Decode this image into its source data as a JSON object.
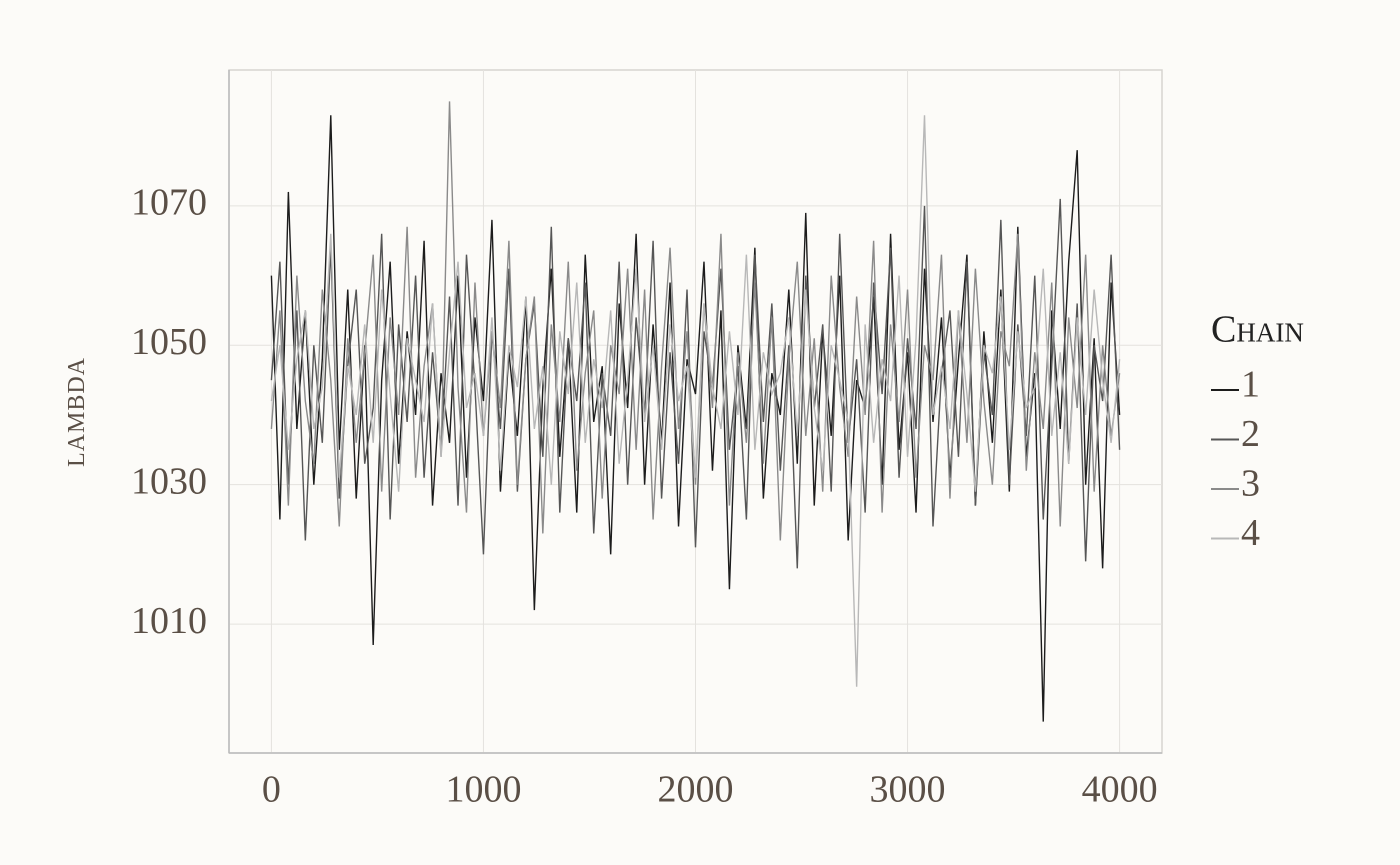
{
  "chart_data": {
    "type": "line",
    "y_label": "lambda",
    "legend_title": "Chain",
    "legend_position": "right",
    "grid": true,
    "xlim": [
      -200,
      4200
    ],
    "ylim": [
      991.5,
      1089.5
    ],
    "xticks": [
      0,
      1000,
      2000,
      3000,
      4000
    ],
    "yticks": [
      1010,
      1030,
      1050,
      1070
    ],
    "x": [
      0,
      40,
      80,
      120,
      160,
      200,
      240,
      280,
      320,
      360,
      400,
      440,
      480,
      520,
      560,
      600,
      640,
      680,
      720,
      760,
      800,
      840,
      880,
      920,
      960,
      1000,
      1040,
      1080,
      1120,
      1160,
      1200,
      1240,
      1280,
      1320,
      1360,
      1400,
      1440,
      1480,
      1520,
      1560,
      1600,
      1640,
      1680,
      1720,
      1760,
      1800,
      1840,
      1880,
      1920,
      1960,
      2000,
      2040,
      2080,
      2120,
      2160,
      2200,
      2240,
      2280,
      2320,
      2360,
      2400,
      2440,
      2480,
      2520,
      2560,
      2600,
      2640,
      2680,
      2720,
      2760,
      2800,
      2840,
      2880,
      2920,
      2960,
      3000,
      3040,
      3080,
      3120,
      3160,
      3200,
      3240,
      3280,
      3320,
      3360,
      3400,
      3440,
      3480,
      3520,
      3560,
      3600,
      3640,
      3680,
      3720,
      3760,
      3800,
      3840,
      3880,
      3920,
      3960,
      4000
    ],
    "series": [
      {
        "name": "1",
        "color": "#1c1c1c",
        "values": [
          1060,
          1025,
          1072,
          1038,
          1055,
          1030,
          1048,
          1083,
          1035,
          1058,
          1028,
          1050,
          1007,
          1045,
          1062,
          1033,
          1052,
          1040,
          1065,
          1027,
          1046,
          1036,
          1060,
          1031,
          1054,
          1042,
          1068,
          1029,
          1049,
          1037,
          1057,
          1012,
          1044,
          1061,
          1034,
          1051,
          1026,
          1063,
          1039,
          1047,
          1020,
          1056,
          1041,
          1066,
          1030,
          1053,
          1036,
          1059,
          1024,
          1048,
          1043,
          1062,
          1032,
          1055,
          1015,
          1050,
          1038,
          1064,
          1028,
          1046,
          1040,
          1058,
          1033,
          1069,
          1027,
          1052,
          1037,
          1060,
          1022,
          1045,
          1041,
          1057,
          1030,
          1066,
          1035,
          1049,
          1026,
          1061,
          1039,
          1054,
          1031,
          1048,
          1063,
          1027,
          1052,
          1036,
          1058,
          1029,
          1067,
          1034,
          1046,
          996,
          1055,
          1038,
          1062,
          1078,
          1030,
          1051,
          1018,
          1059,
          1040
        ]
      },
      {
        "name": "2",
        "color": "#565656",
        "values": [
          1045,
          1062,
          1030,
          1055,
          1022,
          1050,
          1036,
          1064,
          1028,
          1047,
          1058,
          1033,
          1041,
          1066,
          1025,
          1053,
          1039,
          1060,
          1031,
          1049,
          1035,
          1057,
          1027,
          1063,
          1044,
          1020,
          1052,
          1038,
          1061,
          1029,
          1048,
          1056,
          1034,
          1067,
          1026,
          1051,
          1042,
          1059,
          1023,
          1046,
          1037,
          1062,
          1030,
          1054,
          1040,
          1065,
          1028,
          1049,
          1033,
          1058,
          1021,
          1052,
          1044,
          1061,
          1035,
          1047,
          1025,
          1063,
          1039,
          1056,
          1032,
          1050,
          1018,
          1060,
          1041,
          1053,
          1029,
          1066,
          1036,
          1048,
          1026,
          1059,
          1043,
          1064,
          1031,
          1051,
          1038,
          1070,
          1024,
          1046,
          1055,
          1034,
          1062,
          1027,
          1049,
          1040,
          1068,
          1030,
          1053,
          1037,
          1060,
          1025,
          1047,
          1071,
          1033,
          1056,
          1019,
          1050,
          1042,
          1063,
          1035
        ]
      },
      {
        "name": "3",
        "color": "#8a8a8a",
        "values": [
          1038,
          1055,
          1027,
          1060,
          1042,
          1033,
          1058,
          1045,
          1024,
          1051,
          1036,
          1049,
          1063,
          1029,
          1054,
          1040,
          1067,
          1031,
          1047,
          1056,
          1034,
          1085,
          1044,
          1026,
          1059,
          1037,
          1052,
          1041,
          1065,
          1030,
          1048,
          1057,
          1023,
          1053,
          1039,
          1062,
          1032,
          1046,
          1055,
          1028,
          1050,
          1043,
          1061,
          1035,
          1058,
          1025,
          1047,
          1064,
          1038,
          1052,
          1030,
          1056,
          1041,
          1066,
          1027,
          1049,
          1036,
          1059,
          1033,
          1054,
          1022,
          1048,
          1062,
          1037,
          1051,
          1029,
          1060,
          1044,
          1034,
          1057,
          1040,
          1065,
          1026,
          1053,
          1039,
          1058,
          1031,
          1050,
          1045,
          1063,
          1028,
          1055,
          1036,
          1061,
          1042,
          1030,
          1052,
          1047,
          1066,
          1032,
          1049,
          1038,
          1059,
          1024,
          1054,
          1041,
          1063,
          1029,
          1050,
          1037,
          1046
        ]
      },
      {
        "name": "4",
        "color": "#b8b8b8",
        "values": [
          1042,
          1050,
          1035,
          1048,
          1055,
          1038,
          1044,
          1066,
          1031,
          1047,
          1040,
          1053,
          1036,
          1058,
          1043,
          1029,
          1051,
          1045,
          1039,
          1056,
          1034,
          1049,
          1062,
          1041,
          1046,
          1037,
          1054,
          1032,
          1050,
          1044,
          1057,
          1038,
          1047,
          1030,
          1052,
          1043,
          1059,
          1036,
          1048,
          1041,
          1055,
          1033,
          1045,
          1061,
          1039,
          1050,
          1035,
          1053,
          1042,
          1047,
          1031,
          1056,
          1044,
          1038,
          1052,
          1040,
          1063,
          1035,
          1049,
          1043,
          1046,
          1054,
          1037,
          1058,
          1041,
          1032,
          1050,
          1045,
          1039,
          1001,
          1053,
          1036,
          1048,
          1042,
          1060,
          1034,
          1051,
          1083,
          1040,
          1047,
          1038,
          1055,
          1043,
          1029,
          1050,
          1046,
          1057,
          1035,
          1052,
          1041,
          1044,
          1061,
          1037,
          1049,
          1033,
          1054,
          1040,
          1058,
          1045,
          1036,
          1048
        ]
      }
    ]
  }
}
